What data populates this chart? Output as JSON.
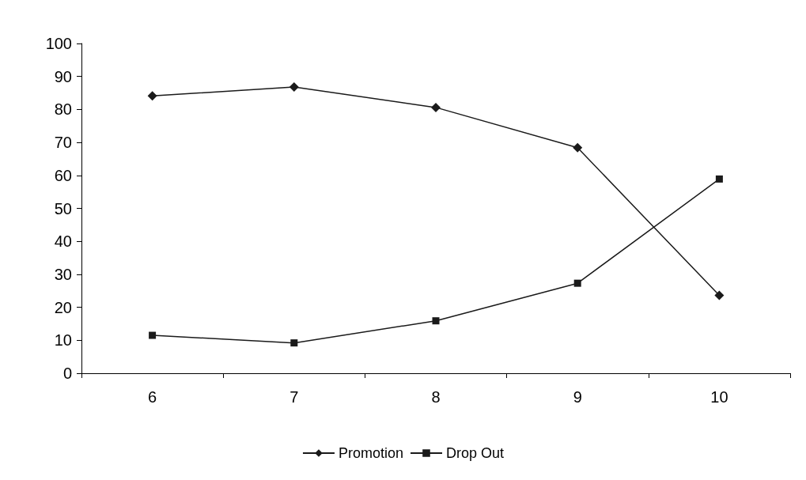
{
  "chart_data": {
    "type": "line",
    "categories": [
      "6",
      "7",
      "8",
      "9",
      "10"
    ],
    "series": [
      {
        "name": "Promotion",
        "color": "#1a1a1a",
        "marker": "diamond",
        "values": [
          84.1,
          86.8,
          80.6,
          68.4,
          23.6
        ]
      },
      {
        "name": "Drop Out",
        "color": "#1a1a1a",
        "marker": "square",
        "values": [
          11.5,
          9.2,
          15.9,
          27.3,
          58.9
        ]
      }
    ],
    "ylim": [
      0,
      100
    ],
    "yticks": [
      0,
      10,
      20,
      30,
      40,
      50,
      60,
      70,
      80,
      90,
      100
    ],
    "grid": false,
    "legend": "bottom"
  }
}
